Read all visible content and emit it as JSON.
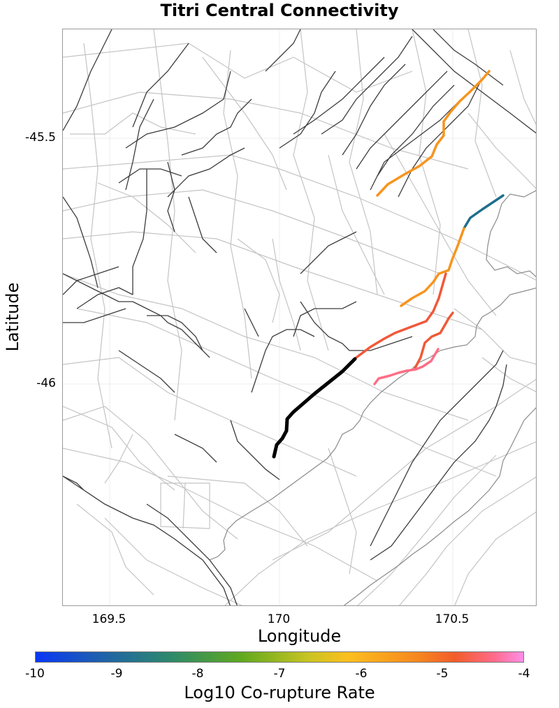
{
  "title": "Titri Central Connectivity",
  "axes": {
    "xlabel": "Longitude",
    "ylabel": "Latitude",
    "xticks": [
      "169.5",
      "170",
      "170.5"
    ],
    "yticks": [
      "-45.5",
      "-46"
    ]
  },
  "colorbar": {
    "label": "Log10 Co-rupture Rate",
    "ticks": [
      "-10",
      "-9",
      "-8",
      "-7",
      "-6",
      "-5",
      "-4"
    ],
    "range": [
      -10,
      -4
    ],
    "colors": [
      "#0a37f5",
      "#1f63a8",
      "#2e8a6a",
      "#5fa81f",
      "#c9c423",
      "#fcbf1e",
      "#f6891f",
      "#f25c2a",
      "#ff6b8a",
      "#ff8ee8"
    ]
  },
  "legend_colors": {
    "source_fault": "#000000",
    "background_fault": "#3c3c3c",
    "subsection_outline": "#c0c0c0",
    "coastline": "#8a8a8a"
  },
  "highlighted_faults": [
    {
      "name": "source-rupture",
      "color": "#000000",
      "log10_rate": null
    },
    {
      "name": "north-east-segment",
      "color": "#f7941e",
      "log10_rate": -6.0
    },
    {
      "name": "teal-segment",
      "color": "#1f6e8c",
      "log10_rate": -9.2
    },
    {
      "name": "central-segment",
      "color": "#f7941e",
      "log10_rate": -6.0
    },
    {
      "name": "orange-red-segment",
      "color": "#f0583a",
      "log10_rate": -5.3
    },
    {
      "name": "red-segment",
      "color": "#ef5a36",
      "log10_rate": -5.2
    },
    {
      "name": "pink-segment",
      "color": "#ff6e86",
      "log10_rate": -4.7
    }
  ]
}
